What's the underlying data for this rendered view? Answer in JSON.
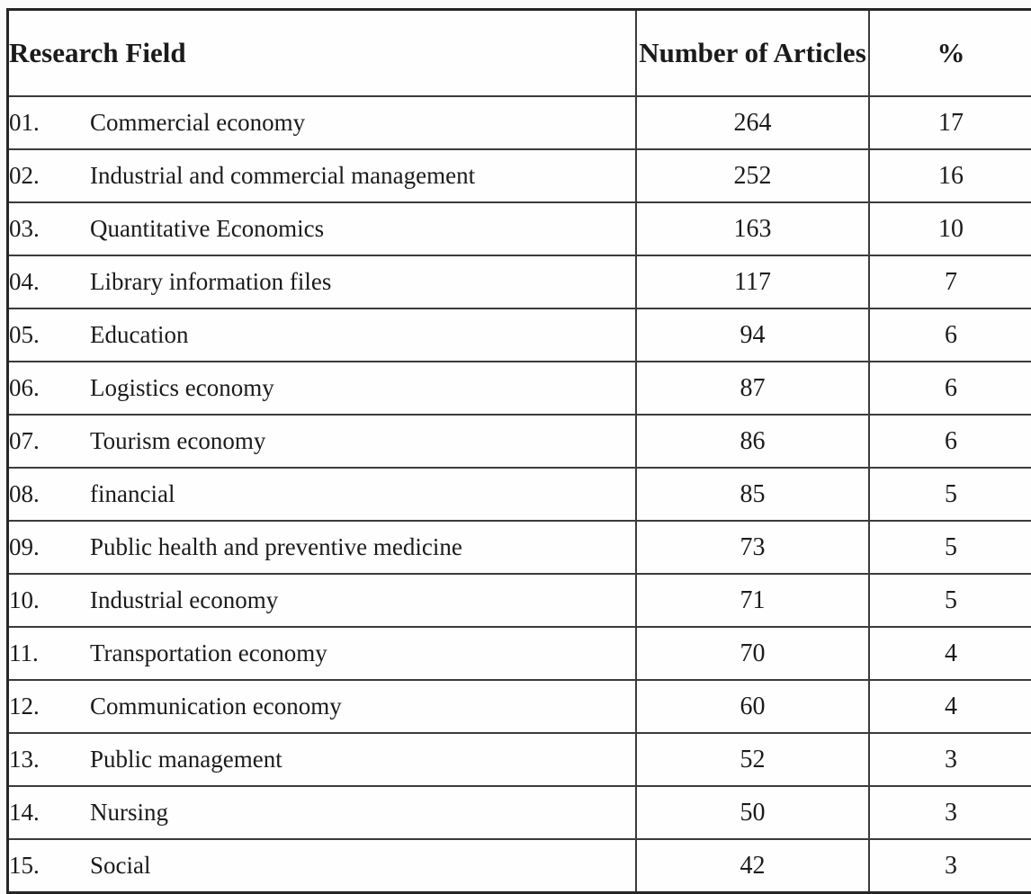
{
  "table": {
    "headers": {
      "field": "Research Field",
      "articles": "Number of Articles",
      "percent": "%"
    },
    "rows": [
      {
        "no": "01.",
        "field": "Commercial economy",
        "articles": "264",
        "pct": "17"
      },
      {
        "no": "02.",
        "field": "Industrial and commercial management",
        "articles": "252",
        "pct": "16"
      },
      {
        "no": "03.",
        "field": "Quantitative Economics",
        "articles": "163",
        "pct": "10"
      },
      {
        "no": "04.",
        "field": "Library information files",
        "articles": "117",
        "pct": "7"
      },
      {
        "no": "05.",
        "field": "Education",
        "articles": "94",
        "pct": "6"
      },
      {
        "no": "06.",
        "field": "Logistics economy",
        "articles": "87",
        "pct": "6"
      },
      {
        "no": "07.",
        "field": "Tourism economy",
        "articles": "86",
        "pct": "6"
      },
      {
        "no": "08.",
        "field": "financial",
        "articles": "85",
        "pct": "5"
      },
      {
        "no": "09.",
        "field": "Public health and preventive medicine",
        "articles": "73",
        "pct": "5"
      },
      {
        "no": "10.",
        "field": "Industrial economy",
        "articles": "71",
        "pct": "5"
      },
      {
        "no": "11.",
        "field": "Transportation economy",
        "articles": "70",
        "pct": "4"
      },
      {
        "no": "12.",
        "field": "Communication economy",
        "articles": "60",
        "pct": "4"
      },
      {
        "no": "13.",
        "field": "Public management",
        "articles": "52",
        "pct": "3"
      },
      {
        "no": "14.",
        "field": "Nursing",
        "articles": "50",
        "pct": "3"
      },
      {
        "no": "15.",
        "field": "Social",
        "articles": "42",
        "pct": "3"
      }
    ]
  },
  "chart_data": {
    "type": "table",
    "title": "",
    "columns": [
      "Research Field",
      "Number of Articles",
      "%"
    ],
    "categories": [
      "Commercial economy",
      "Industrial and commercial management",
      "Quantitative Economics",
      "Library information files",
      "Education",
      "Logistics economy",
      "Tourism economy",
      "financial",
      "Public health and preventive medicine",
      "Industrial economy",
      "Transportation economy",
      "Communication economy",
      "Public management",
      "Nursing",
      "Social"
    ],
    "series": [
      {
        "name": "Number of Articles",
        "values": [
          264,
          252,
          163,
          117,
          94,
          87,
          86,
          85,
          73,
          71,
          70,
          60,
          52,
          50,
          42
        ]
      },
      {
        "name": "%",
        "values": [
          17,
          16,
          10,
          7,
          6,
          6,
          6,
          5,
          5,
          5,
          4,
          4,
          3,
          3,
          3
        ]
      }
    ]
  },
  "colors": {
    "page_background": "#fbfbfb",
    "cell_background": "#fefefe",
    "border": "#2c2c2c",
    "text": "#1b1b1b"
  }
}
